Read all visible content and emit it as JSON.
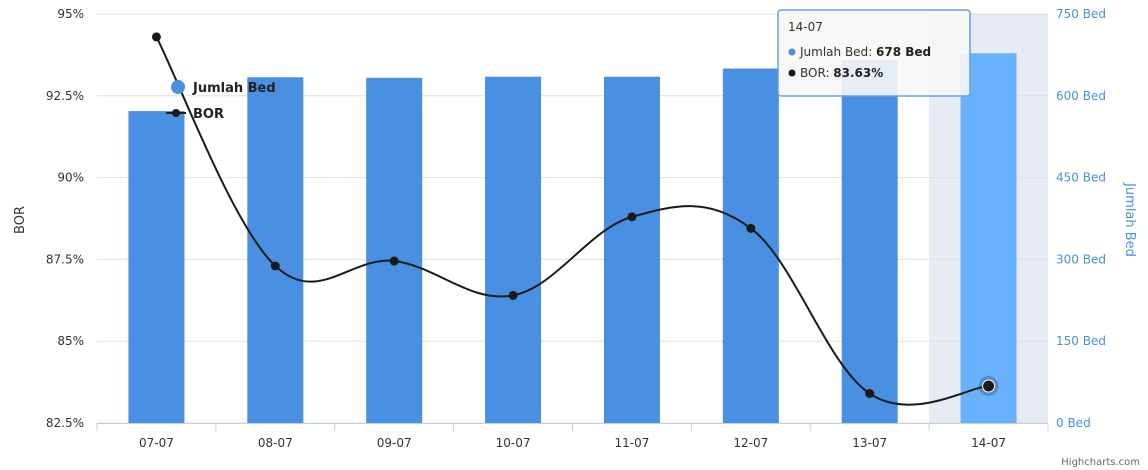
{
  "chart_data": {
    "type": "bar",
    "categories": [
      "07-07",
      "08-07",
      "09-07",
      "10-07",
      "11-07",
      "12-07",
      "13-07",
      "14-07"
    ],
    "series": [
      {
        "name": "Jumlah Bed",
        "type": "bar",
        "axis": "right",
        "color": "#4a90e2",
        "highlight_color": "#68b1ff",
        "values": [
          572,
          634,
          633,
          635,
          635,
          650,
          665,
          678
        ]
      },
      {
        "name": "BOR",
        "type": "line",
        "axis": "left",
        "color": "#1a1a1a",
        "values": [
          94.3,
          87.3,
          87.45,
          86.4,
          88.8,
          88.45,
          83.4,
          83.63
        ]
      }
    ],
    "left_axis": {
      "title": "BOR",
      "ylim": [
        82.5,
        95
      ],
      "ticks": [
        82.5,
        85,
        87.5,
        90,
        92.5,
        95
      ],
      "tick_labels": [
        "82.5%",
        "85%",
        "87.5%",
        "90%",
        "92.5%",
        "95%"
      ]
    },
    "right_axis": {
      "title": "Jumlah Bed",
      "ylim": [
        0,
        750
      ],
      "ticks": [
        0,
        150,
        300,
        450,
        600,
        750
      ],
      "tick_labels": [
        "0 Bed",
        "150 Bed",
        "300 Bed",
        "450 Bed",
        "600 Bed",
        "750 Bed"
      ]
    },
    "legend": {
      "placement": "top-left",
      "items": [
        "Jumlah Bed",
        "BOR"
      ]
    },
    "highlighted_index": 7,
    "tooltip": {
      "title": "14-07",
      "rows": [
        {
          "label": "Jumlah Bed",
          "value": "678 Bed",
          "color": "#4a90e2"
        },
        {
          "label": "BOR",
          "value": "83.63%",
          "color": "#1a1a1a"
        }
      ]
    },
    "grid": true,
    "credit": "Highcharts.com"
  }
}
